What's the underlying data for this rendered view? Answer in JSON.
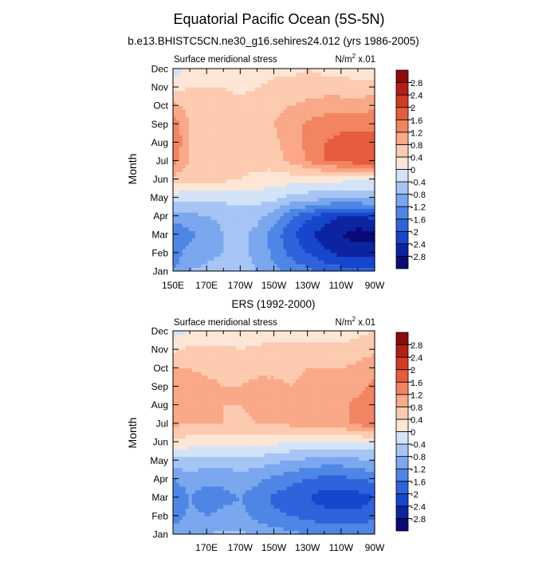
{
  "title": "Equatorial Pacific Ocean (5S-5N)",
  "colors": [
    "#0a0a78",
    "#0d24a0",
    "#1646cc",
    "#2e63dc",
    "#4f86e6",
    "#7aa7ee",
    "#a6c5f4",
    "#d3e3f8",
    "#fde6d6",
    "#fccbb0",
    "#f9a888",
    "#f38462",
    "#e75c3d",
    "#d23b23",
    "#b41e15",
    "#8c0b0b"
  ],
  "chart_data": [
    {
      "type": "heatmap",
      "title": "b.e13.BHISTC5CN.ne30_g16.sehires24.012 (yrs 1986-2005)",
      "left_label": "Surface meridional stress",
      "units_prefix": "N/m",
      "units_sup": "2",
      "units_suffix": " x.01",
      "ylabel": "Month",
      "xticks": [
        "150E",
        "170E",
        "170W",
        "150W",
        "130W",
        "110W",
        "90W"
      ],
      "months": [
        "Jan",
        "Feb",
        "Mar",
        "Apr",
        "May",
        "Jun",
        "Jul",
        "Aug",
        "Sep",
        "Oct",
        "Nov",
        "Dec"
      ],
      "x_range": [
        150,
        270
      ],
      "cbar_labels": [
        "-2.8",
        "-2.4",
        "-2",
        "-1.6",
        "-1.2",
        "-0.8",
        "-0.4",
        "0",
        "0.4",
        "0.8",
        "1.2",
        "1.6",
        "2",
        "2.4",
        "2.8"
      ],
      "levels": [
        -2.8,
        -2.4,
        -2,
        -1.6,
        -1.2,
        -0.8,
        -0.4,
        0,
        0.4,
        0.8,
        1.2,
        1.6,
        2,
        2.4,
        2.8
      ],
      "lon_nodes": [
        150,
        160,
        170,
        180,
        190,
        200,
        210,
        220,
        230,
        240,
        250,
        260,
        270
      ],
      "values": [
        [
          -1.2,
          -0.8,
          -0.7,
          -0.6,
          -0.6,
          -0.8,
          -1.1,
          -1.3,
          -1.5,
          -1.7,
          -1.8,
          -1.9,
          -1.9
        ],
        [
          -1.5,
          -1.0,
          -0.9,
          -0.8,
          -0.7,
          -0.9,
          -1.3,
          -1.7,
          -2.0,
          -2.3,
          -2.5,
          -2.6,
          -2.6
        ],
        [
          -1.6,
          -1.3,
          -1.1,
          -0.8,
          -0.7,
          -0.9,
          -1.4,
          -1.9,
          -2.3,
          -2.6,
          -2.8,
          -3.0,
          -2.9
        ],
        [
          -1.0,
          -0.9,
          -0.8,
          -0.7,
          -0.6,
          -0.7,
          -1.0,
          -1.5,
          -1.9,
          -2.2,
          -2.4,
          -2.4,
          -2.3
        ],
        [
          -0.2,
          -0.3,
          -0.3,
          -0.3,
          -0.2,
          -0.2,
          -0.3,
          -0.5,
          -0.6,
          -0.7,
          -0.8,
          -0.7,
          -0.7
        ],
        [
          0.6,
          0.5,
          0.5,
          0.5,
          0.4,
          0.3,
          0.2,
          0.2,
          0.1,
          0.1,
          0.1,
          0.0,
          0.0
        ],
        [
          1.4,
          0.8,
          0.6,
          0.5,
          0.5,
          0.5,
          0.6,
          0.9,
          1.2,
          1.6,
          1.7,
          1.8,
          1.8
        ],
        [
          1.6,
          0.8,
          0.6,
          0.5,
          0.5,
          0.6,
          0.7,
          1.0,
          1.3,
          1.6,
          1.7,
          1.8,
          1.8
        ],
        [
          1.5,
          0.8,
          0.6,
          0.5,
          0.5,
          0.6,
          0.8,
          1.0,
          1.3,
          1.4,
          1.5,
          1.5,
          1.5
        ],
        [
          0.9,
          0.6,
          0.6,
          0.6,
          0.5,
          0.6,
          0.7,
          0.8,
          0.9,
          1.0,
          1.0,
          1.0,
          1.1
        ],
        [
          0.3,
          0.4,
          0.4,
          0.4,
          0.3,
          0.4,
          0.5,
          0.5,
          0.6,
          0.6,
          0.6,
          0.5,
          0.6
        ],
        [
          -0.3,
          0.1,
          0.2,
          0.2,
          0.2,
          0.2,
          0.3,
          0.3,
          0.4,
          0.3,
          0.3,
          0.2,
          0.2
        ]
      ]
    },
    {
      "type": "heatmap",
      "title": "ERS (1992-2000)",
      "left_label": "Surface meridional stress",
      "units_prefix": "N/m",
      "units_sup": "2",
      "units_suffix": " x.01",
      "ylabel": "Month",
      "xticks": [
        "170E",
        "170W",
        "150W",
        "130W",
        "110W",
        "90W"
      ],
      "months": [
        "Jan",
        "Feb",
        "Mar",
        "Apr",
        "May",
        "Jun",
        "Jul",
        "Aug",
        "Sep",
        "Oct",
        "Nov",
        "Dec"
      ],
      "x_range": [
        150,
        270
      ],
      "cbar_labels": [
        "-2.8",
        "-2.4",
        "-2",
        "-1.6",
        "-1.2",
        "-0.8",
        "-0.4",
        "0",
        "0.4",
        "0.8",
        "1.2",
        "1.6",
        "2",
        "2.4",
        "2.8"
      ],
      "levels": [
        -2.8,
        -2.4,
        -2,
        -1.6,
        -1.2,
        -0.8,
        -0.4,
        0,
        0.4,
        0.8,
        1.2,
        1.6,
        2,
        2.4,
        2.8
      ],
      "lon_nodes": [
        150,
        160,
        170,
        180,
        190,
        200,
        210,
        220,
        230,
        240,
        250,
        260,
        270
      ],
      "values": [
        [
          -1.0,
          -0.8,
          -0.8,
          -0.7,
          -0.7,
          -0.9,
          -1.0,
          -1.1,
          -1.2,
          -1.3,
          -1.3,
          -1.3,
          -1.2
        ],
        [
          -1.4,
          -1.1,
          -1.2,
          -1.1,
          -1.1,
          -1.3,
          -1.5,
          -1.6,
          -1.7,
          -1.8,
          -1.9,
          -1.9,
          -1.7
        ],
        [
          -1.6,
          -1.2,
          -1.4,
          -1.3,
          -1.2,
          -1.4,
          -1.7,
          -1.8,
          -2.0,
          -2.2,
          -2.2,
          -2.2,
          -2.0
        ],
        [
          -1.2,
          -1.0,
          -1.1,
          -1.1,
          -1.0,
          -1.1,
          -1.3,
          -1.5,
          -1.6,
          -1.7,
          -1.7,
          -1.6,
          -1.5
        ],
        [
          -0.5,
          -0.5,
          -0.6,
          -0.6,
          -0.5,
          -0.6,
          -0.7,
          -0.8,
          -0.9,
          -1.0,
          -1.0,
          -0.9,
          -0.8
        ],
        [
          0.3,
          0.2,
          0.2,
          0.2,
          0.2,
          0.2,
          0.1,
          0.0,
          -0.1,
          -0.1,
          -0.1,
          0.0,
          0.0
        ],
        [
          0.9,
          0.8,
          0.8,
          0.8,
          0.7,
          0.8,
          0.8,
          0.9,
          0.9,
          1.0,
          1.1,
          1.3,
          1.4
        ],
        [
          1.1,
          0.9,
          0.9,
          0.8,
          0.8,
          0.9,
          0.9,
          0.9,
          1.0,
          1.0,
          1.1,
          1.3,
          1.4
        ],
        [
          1.2,
          1.0,
          0.9,
          0.8,
          0.8,
          0.9,
          0.9,
          0.8,
          0.9,
          0.9,
          1.0,
          1.1,
          1.3
        ],
        [
          0.8,
          0.8,
          0.7,
          0.7,
          0.7,
          0.7,
          0.7,
          0.7,
          0.8,
          0.8,
          0.8,
          0.9,
          1.1
        ],
        [
          0.3,
          0.5,
          0.5,
          0.5,
          0.4,
          0.5,
          0.6,
          0.5,
          0.5,
          0.5,
          0.5,
          0.6,
          0.7
        ],
        [
          -0.2,
          0.0,
          0.1,
          0.1,
          0.1,
          0.1,
          0.2,
          0.2,
          0.2,
          0.2,
          0.2,
          0.3,
          0.4
        ]
      ]
    }
  ]
}
